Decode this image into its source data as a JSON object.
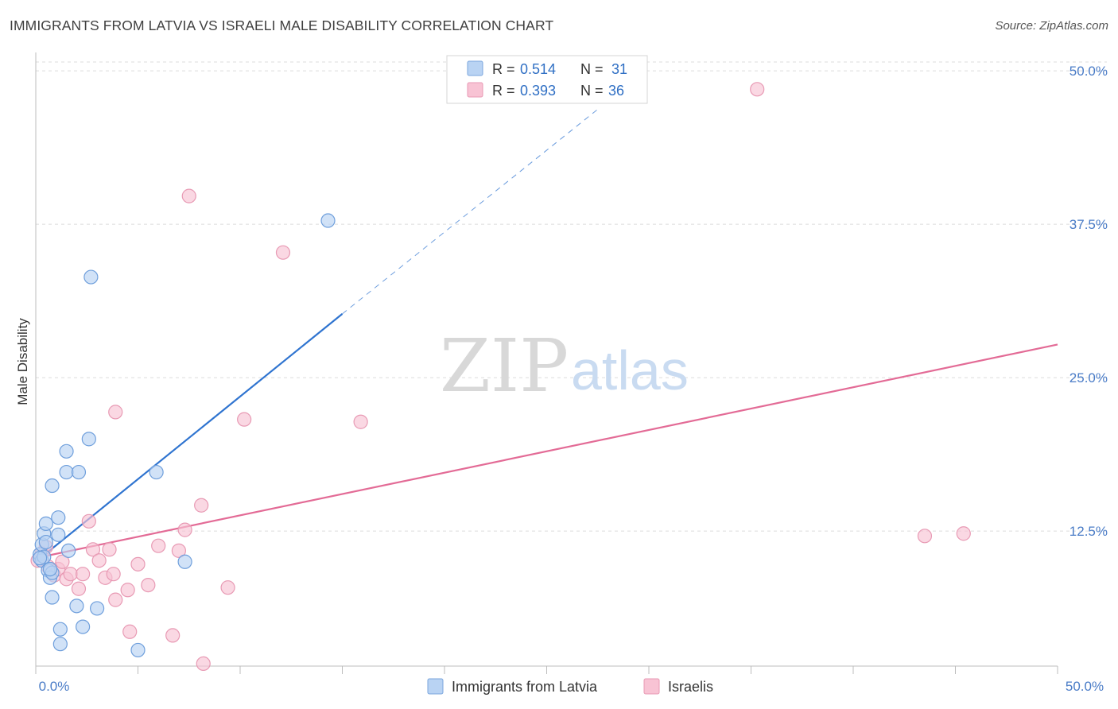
{
  "title": "IMMIGRANTS FROM LATVIA VS ISRAELI MALE DISABILITY CORRELATION CHART",
  "source": "Source: ZipAtlas.com",
  "watermark": {
    "zip": "ZIP",
    "atlas": "atlas"
  },
  "colors": {
    "blue": "#2f74d0",
    "blue_fill": "#b9d3f3",
    "pink": "#e36b96",
    "pink_fill": "#f8c3d4",
    "grid": "#dcdcdc",
    "tick_text": "#4a7cc7"
  },
  "stats": [
    {
      "r_label": "R =",
      "r_value": "0.514",
      "n_label": "N =",
      "n_value": "31"
    },
    {
      "r_label": "R =",
      "r_value": "0.393",
      "n_label": "N =",
      "n_value": "36"
    }
  ],
  "chart_data": {
    "type": "scatter",
    "title": "IMMIGRANTS FROM LATVIA VS ISRAELI MALE DISABILITY CORRELATION CHART",
    "xlabel": "",
    "ylabel": "Male Disability",
    "xlim": [
      0,
      50
    ],
    "ylim": [
      1.5,
      51.5
    ],
    "x_tick_labels": [
      "0.0%",
      "50.0%"
    ],
    "y_ticks": [
      12.5,
      25.0,
      37.5,
      50.0
    ],
    "y_tick_labels": [
      "12.5%",
      "25.0%",
      "37.5%",
      "50.0%"
    ],
    "legend": [
      "Immigrants from Latvia",
      "Israelis"
    ],
    "series": [
      {
        "name": "Immigrants from Latvia",
        "color": "#2f74d0",
        "points": [
          [
            0.2,
            10.6
          ],
          [
            0.3,
            11.4
          ],
          [
            0.3,
            10.1
          ],
          [
            0.4,
            12.3
          ],
          [
            0.5,
            13.1
          ],
          [
            0.5,
            11.6
          ],
          [
            0.4,
            10.4
          ],
          [
            0.6,
            9.3
          ],
          [
            0.7,
            8.7
          ],
          [
            0.8,
            16.2
          ],
          [
            0.8,
            9.1
          ],
          [
            1.1,
            12.2
          ],
          [
            1.1,
            13.6
          ],
          [
            1.2,
            3.3
          ],
          [
            1.2,
            4.5
          ],
          [
            1.5,
            19.0
          ],
          [
            1.5,
            17.3
          ],
          [
            1.6,
            10.9
          ],
          [
            0.8,
            7.1
          ],
          [
            2.0,
            6.4
          ],
          [
            2.1,
            17.3
          ],
          [
            2.6,
            20.0
          ],
          [
            2.7,
            33.2
          ],
          [
            3.0,
            6.2
          ],
          [
            2.3,
            4.7
          ],
          [
            5.0,
            2.8
          ],
          [
            5.9,
            17.3
          ],
          [
            7.3,
            10.0
          ],
          [
            14.3,
            37.8
          ],
          [
            0.2,
            10.3
          ],
          [
            0.7,
            9.4
          ]
        ],
        "trend": {
          "x0": 0,
          "y0": 10.0,
          "x1": 15,
          "y1": 30.2,
          "dash_x1": 27.6,
          "dash_y1": 47.0
        }
      },
      {
        "name": "Israelis",
        "color": "#e36b96",
        "points": [
          [
            0.1,
            10.1
          ],
          [
            0.3,
            10.7
          ],
          [
            0.5,
            11.2
          ],
          [
            0.6,
            9.6
          ],
          [
            0.9,
            8.9
          ],
          [
            1.1,
            9.4
          ],
          [
            1.3,
            10.0
          ],
          [
            1.5,
            8.6
          ],
          [
            1.7,
            9.0
          ],
          [
            2.1,
            7.8
          ],
          [
            2.3,
            9.0
          ],
          [
            2.6,
            13.3
          ],
          [
            2.8,
            11.0
          ],
          [
            3.1,
            10.1
          ],
          [
            3.4,
            8.7
          ],
          [
            3.6,
            11.0
          ],
          [
            3.8,
            9.0
          ],
          [
            3.9,
            6.9
          ],
          [
            3.9,
            22.2
          ],
          [
            4.5,
            7.7
          ],
          [
            4.6,
            4.3
          ],
          [
            5.0,
            9.8
          ],
          [
            5.5,
            8.1
          ],
          [
            6.0,
            11.3
          ],
          [
            6.7,
            4.0
          ],
          [
            7.0,
            10.9
          ],
          [
            7.3,
            12.6
          ],
          [
            7.5,
            39.8
          ],
          [
            8.1,
            14.6
          ],
          [
            8.2,
            1.7
          ],
          [
            9.4,
            7.9
          ],
          [
            10.2,
            21.6
          ],
          [
            12.1,
            35.2
          ],
          [
            15.9,
            21.4
          ],
          [
            35.3,
            48.5
          ],
          [
            43.5,
            12.1
          ]
        ],
        "extra_point": [
          45.4,
          12.3
        ],
        "trend": {
          "x0": 0,
          "y0": 10.3,
          "x1": 50,
          "y1": 27.7
        }
      }
    ]
  }
}
